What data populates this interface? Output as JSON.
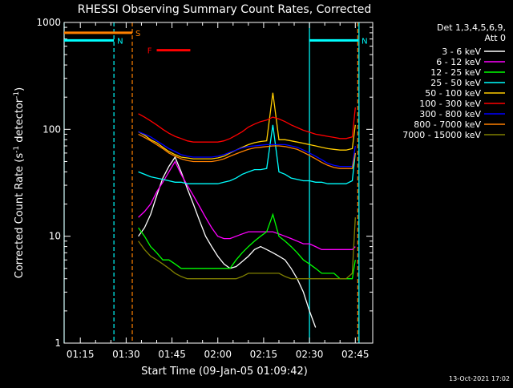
{
  "chart_data": {
    "type": "line",
    "title": "RHESSI Observing Summary Count Rates, Corrected",
    "xlabel": "Start Time (09-Jan-05 01:09:42)",
    "ylabel": "Corrected Count Rate (s",
    "ylabel_sup": "-1",
    "ylabel_tail": " detector",
    "ylabel_sup2": "-1",
    "ylabel_close": ")",
    "x_ticks": [
      "01:15",
      "01:30",
      "01:45",
      "02:00",
      "02:15",
      "02:30",
      "02:45"
    ],
    "x_tick_minutes": [
      75,
      90,
      105,
      120,
      135,
      150,
      165
    ],
    "xlim_minutes": [
      69.7,
      170.7
    ],
    "y_ticks": [
      "1",
      "10",
      "100",
      "1000"
    ],
    "y_tick_values": [
      1,
      10,
      100,
      1000
    ],
    "ylim": [
      1,
      1000
    ],
    "y_scale": "log",
    "legend_position": "top-right",
    "legend_header": [
      "Det 1,3,4,5,6,9,",
      "Att 0"
    ],
    "timestamp": "13-Oct-2021 17:02",
    "flags": [
      {
        "label": "S",
        "color": "#ff8000",
        "start": 69.7,
        "end": 92.0,
        "y_value": 800
      },
      {
        "label": "N",
        "color": "#00ffff",
        "start": 69.7,
        "end": 86.0,
        "y_value": 680
      },
      {
        "label": "N",
        "color": "#00ffff",
        "start": 150.0,
        "end": 166.0,
        "y_value": 680
      },
      {
        "label": "F",
        "color": "#ff0000",
        "start": 100.0,
        "end": 111.0,
        "y_value": 550
      }
    ],
    "vertical_lines": [
      {
        "x": 69.7,
        "color": "#00ffff",
        "dashed": false
      },
      {
        "x": 86.0,
        "color": "#00ffff",
        "dashed": true
      },
      {
        "x": 92.0,
        "color": "#ff8000",
        "dashed": true
      },
      {
        "x": 150.0,
        "color": "#00ffff",
        "dashed": false
      },
      {
        "x": 165.8,
        "color": "#ff8000",
        "dashed": true
      },
      {
        "x": 166.2,
        "color": "#00ffff",
        "dashed": false
      }
    ],
    "x": [
      94,
      96,
      98,
      100,
      102,
      104,
      106,
      108,
      110,
      112,
      114,
      116,
      118,
      120,
      122,
      124,
      126,
      128,
      130,
      132,
      134,
      136,
      138,
      140,
      142,
      144,
      146,
      148,
      150,
      152,
      154,
      156,
      158,
      160,
      162,
      164,
      165
    ],
    "series": [
      {
        "name": "3 - 6 keV",
        "color": "#ffffff",
        "values": [
          10,
          12,
          16,
          24,
          35,
          45,
          55,
          40,
          28,
          20,
          14,
          10,
          8,
          6.5,
          5.5,
          5.0,
          5.2,
          5.8,
          6.5,
          7.5,
          8.0,
          7.5,
          7.0,
          6.5,
          6.0,
          5.0,
          4.0,
          3.0,
          2.0,
          1.4,
          null,
          null,
          null,
          null,
          null,
          null,
          null
        ]
      },
      {
        "name": "6 - 12 keV",
        "color": "#ff00ff",
        "values": [
          15,
          17,
          20,
          26,
          32,
          40,
          50,
          38,
          30,
          24,
          19,
          15,
          12,
          10,
          9.5,
          9.5,
          10,
          10.5,
          11,
          11,
          11,
          11,
          11,
          10.5,
          10,
          9.5,
          9,
          8.5,
          8.5,
          8,
          7.5,
          7.5,
          7.5,
          7.5,
          7.5,
          7.5,
          8
        ]
      },
      {
        "name": "12 - 25 keV",
        "color": "#00ff00",
        "values": [
          12,
          10,
          8,
          7,
          6,
          6,
          5.5,
          5,
          5,
          5,
          5,
          5,
          5,
          5,
          5,
          5,
          6,
          7,
          8,
          9,
          10,
          11,
          16,
          10,
          9,
          8,
          7,
          6,
          5.5,
          5,
          4.5,
          4.5,
          4.5,
          4,
          4,
          4,
          6
        ]
      },
      {
        "name": "25 - 50 keV",
        "color": "#00ffff",
        "values": [
          40,
          38,
          36,
          35,
          34,
          33,
          32,
          32,
          31,
          31,
          31,
          31,
          31,
          31,
          32,
          33,
          35,
          38,
          40,
          42,
          42,
          43,
          110,
          40,
          38,
          35,
          34,
          33,
          33,
          32,
          32,
          31,
          31,
          31,
          31,
          33,
          60
        ]
      },
      {
        "name": "50 - 100 keV",
        "color": "#ffcc00",
        "values": [
          95,
          88,
          80,
          75,
          68,
          62,
          58,
          55,
          54,
          53,
          53,
          53,
          53,
          54,
          56,
          60,
          64,
          68,
          72,
          75,
          77,
          78,
          220,
          80,
          80,
          78,
          76,
          74,
          72,
          70,
          68,
          66,
          65,
          64,
          64,
          66,
          110
        ]
      },
      {
        "name": "100 - 300 keV",
        "color": "#ff0000",
        "values": [
          140,
          130,
          120,
          110,
          100,
          92,
          86,
          82,
          78,
          76,
          76,
          76,
          76,
          76,
          78,
          82,
          88,
          95,
          105,
          112,
          118,
          122,
          130,
          125,
          118,
          110,
          104,
          98,
          94,
          90,
          88,
          86,
          84,
          82,
          82,
          85,
          160
        ]
      },
      {
        "name": "300 - 800 keV",
        "color": "#0000ff",
        "values": [
          95,
          90,
          85,
          78,
          72,
          66,
          62,
          58,
          56,
          55,
          55,
          55,
          55,
          56,
          58,
          61,
          64,
          67,
          69,
          70,
          71,
          72,
          72,
          72,
          72,
          70,
          68,
          64,
          60,
          56,
          52,
          48,
          46,
          45,
          45,
          45,
          70
        ]
      },
      {
        "name": "800 - 7000 keV",
        "color": "#ff8000",
        "values": [
          90,
          84,
          78,
          72,
          66,
          60,
          56,
          53,
          51,
          50,
          50,
          50,
          50,
          51,
          53,
          56,
          59,
          62,
          65,
          67,
          68,
          69,
          70,
          70,
          69,
          67,
          65,
          61,
          57,
          53,
          49,
          46,
          44,
          43,
          43,
          43,
          60
        ]
      },
      {
        "name": "7000 - 15000 keV",
        "color": "#808000",
        "values": [
          9,
          7.5,
          6.5,
          6,
          5.5,
          5,
          4.5,
          4.2,
          4,
          4,
          4,
          4,
          4,
          4,
          4,
          4,
          4,
          4.2,
          4.5,
          4.5,
          4.5,
          4.5,
          4.5,
          4.5,
          4.2,
          4,
          4,
          4,
          4,
          4,
          4,
          4,
          4,
          4,
          4,
          4.5,
          15
        ]
      }
    ]
  }
}
